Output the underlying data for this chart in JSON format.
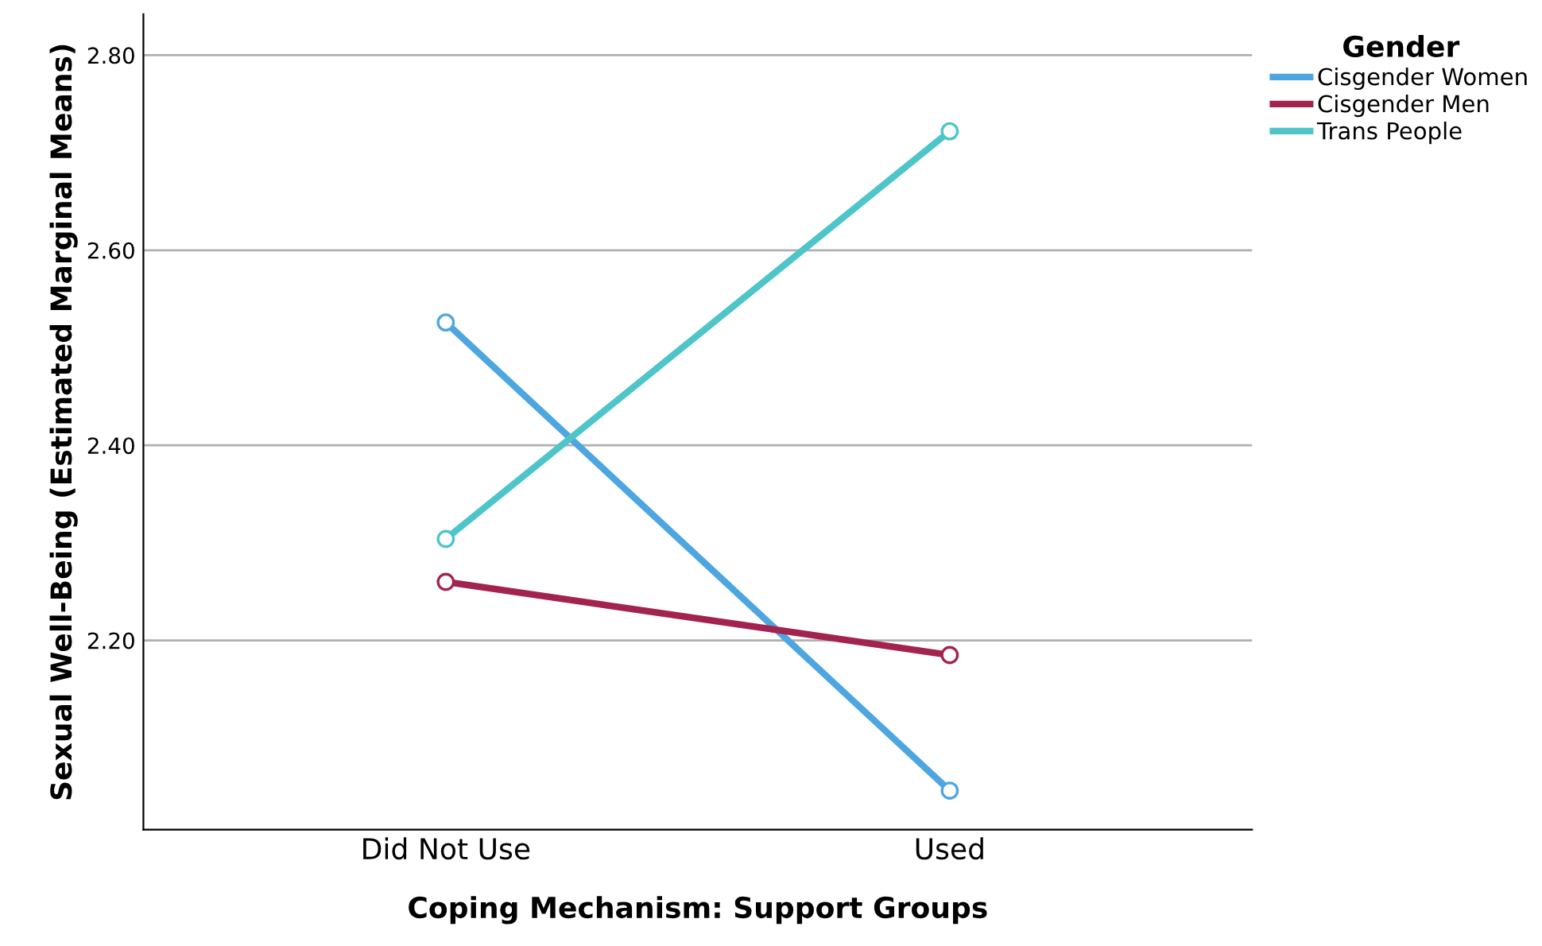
{
  "chart_data": {
    "type": "line",
    "xlabel": "Coping Mechanism: Support Groups",
    "ylabel": "Sexual Well-Being (Estimated Marginal Means)",
    "legend_title": "Gender",
    "categories": [
      "Did Not Use",
      "Used"
    ],
    "series": [
      {
        "name": "Cisgender Women",
        "color": "#4ea6e0",
        "values": [
          2.526,
          2.046
        ]
      },
      {
        "name": "Cisgender Men",
        "color": "#a3234f",
        "values": [
          2.26,
          2.185
        ]
      },
      {
        "name": "Trans People",
        "color": "#4ec5c9",
        "values": [
          2.304,
          2.722
        ]
      }
    ],
    "ylim": [
      2.006,
      2.842
    ],
    "yticks": [
      {
        "value": 2.2,
        "label": "2.20"
      },
      {
        "value": 2.4,
        "label": "2.40"
      },
      {
        "value": 2.6,
        "label": "2.60"
      },
      {
        "value": 2.8,
        "label": "2.80"
      }
    ],
    "grid": "y",
    "legend": "top right",
    "marker": "circle",
    "line_style": "solid"
  }
}
